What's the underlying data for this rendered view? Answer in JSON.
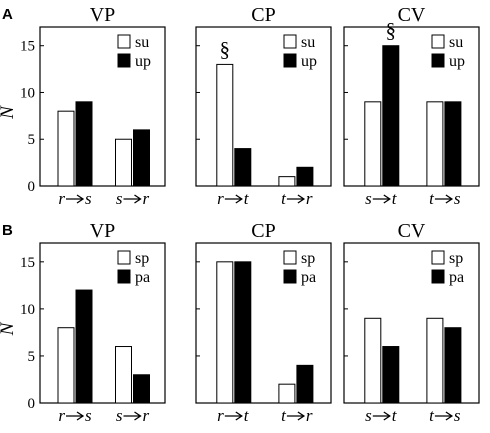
{
  "chart_data": [
    {
      "type": "bar",
      "panel": "A",
      "title": "VP",
      "ylabel": "N",
      "ylim": [
        0,
        17
      ],
      "yticks": [
        "0",
        "5",
        "10",
        "15"
      ],
      "categories": [
        [
          "r",
          "s"
        ],
        [
          "s",
          "r"
        ]
      ],
      "series": [
        {
          "name": "su",
          "color": "#ffffff",
          "values": [
            8,
            5
          ]
        },
        {
          "name": "up",
          "color": "#000000",
          "values": [
            9,
            6
          ]
        }
      ],
      "annotations": []
    },
    {
      "type": "bar",
      "title": "CP",
      "ylim": [
        0,
        17
      ],
      "categories": [
        [
          "r",
          "t"
        ],
        [
          "t",
          "r"
        ]
      ],
      "series": [
        {
          "name": "su",
          "color": "#ffffff",
          "values": [
            13,
            1
          ]
        },
        {
          "name": "up",
          "color": "#000000",
          "values": [
            4,
            2
          ]
        }
      ],
      "annotations": [
        {
          "text": "§",
          "category_index": 0,
          "series_index": 0
        }
      ]
    },
    {
      "type": "bar",
      "title": "CV",
      "ylim": [
        0,
        17
      ],
      "categories": [
        [
          "s",
          "t"
        ],
        [
          "t",
          "s"
        ]
      ],
      "series": [
        {
          "name": "su",
          "color": "#ffffff",
          "values": [
            9,
            9
          ]
        },
        {
          "name": "up",
          "color": "#000000",
          "values": [
            15,
            9
          ]
        }
      ],
      "annotations": [
        {
          "text": "§",
          "category_index": 0,
          "series_index": 1
        }
      ]
    },
    {
      "type": "bar",
      "panel": "B",
      "title": "VP",
      "ylabel": "N",
      "ylim": [
        0,
        17
      ],
      "yticks": [
        "0",
        "5",
        "10",
        "15"
      ],
      "categories": [
        [
          "r",
          "s"
        ],
        [
          "s",
          "r"
        ]
      ],
      "series": [
        {
          "name": "sp",
          "color": "#ffffff",
          "values": [
            8,
            6
          ]
        },
        {
          "name": "pa",
          "color": "#000000",
          "values": [
            12,
            3
          ]
        }
      ],
      "annotations": []
    },
    {
      "type": "bar",
      "title": "CP",
      "ylim": [
        0,
        17
      ],
      "categories": [
        [
          "r",
          "t"
        ],
        [
          "t",
          "r"
        ]
      ],
      "series": [
        {
          "name": "sp",
          "color": "#ffffff",
          "values": [
            15,
            2
          ]
        },
        {
          "name": "pa",
          "color": "#000000",
          "values": [
            15,
            4
          ]
        }
      ],
      "annotations": []
    },
    {
      "type": "bar",
      "title": "CV",
      "ylim": [
        0,
        17
      ],
      "categories": [
        [
          "s",
          "t"
        ],
        [
          "t",
          "s"
        ]
      ],
      "series": [
        {
          "name": "sp",
          "color": "#ffffff",
          "values": [
            9,
            9
          ]
        },
        {
          "name": "pa",
          "color": "#000000",
          "values": [
            6,
            8
          ]
        }
      ],
      "annotations": []
    }
  ]
}
